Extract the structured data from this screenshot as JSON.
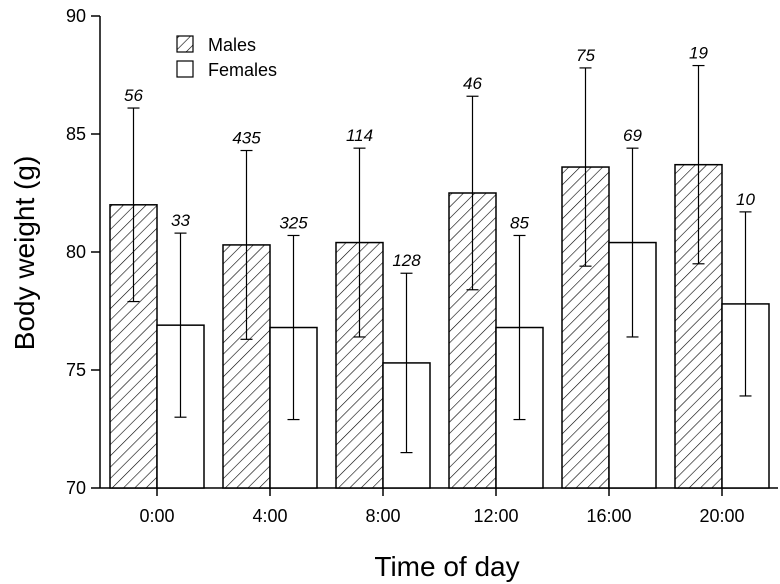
{
  "chart_data": {
    "type": "bar",
    "title": "",
    "xlabel": "Time of day",
    "ylabel": "Body weight (g)",
    "ylim": [
      70,
      90
    ],
    "yticks": [
      70,
      75,
      80,
      85,
      90
    ],
    "categories": [
      "0:00",
      "4:00",
      "8:00",
      "12:00",
      "16:00",
      "20:00"
    ],
    "legend_position": "top-left",
    "grid": false,
    "series": [
      {
        "name": "Males",
        "pattern": "hatched",
        "values": [
          82.0,
          80.3,
          80.4,
          82.5,
          83.6,
          83.7
        ],
        "error": [
          4.1,
          4.0,
          4.0,
          4.1,
          4.2,
          4.2
        ],
        "n": [
          "56",
          "435",
          "114",
          "46",
          "75",
          "19"
        ]
      },
      {
        "name": "Females",
        "pattern": "open",
        "values": [
          76.9,
          76.8,
          75.3,
          76.8,
          80.4,
          77.8
        ],
        "error": [
          3.9,
          3.9,
          3.8,
          3.9,
          4.0,
          3.9
        ],
        "n": [
          "33",
          "325",
          "128",
          "85",
          "69",
          "10"
        ]
      }
    ]
  }
}
